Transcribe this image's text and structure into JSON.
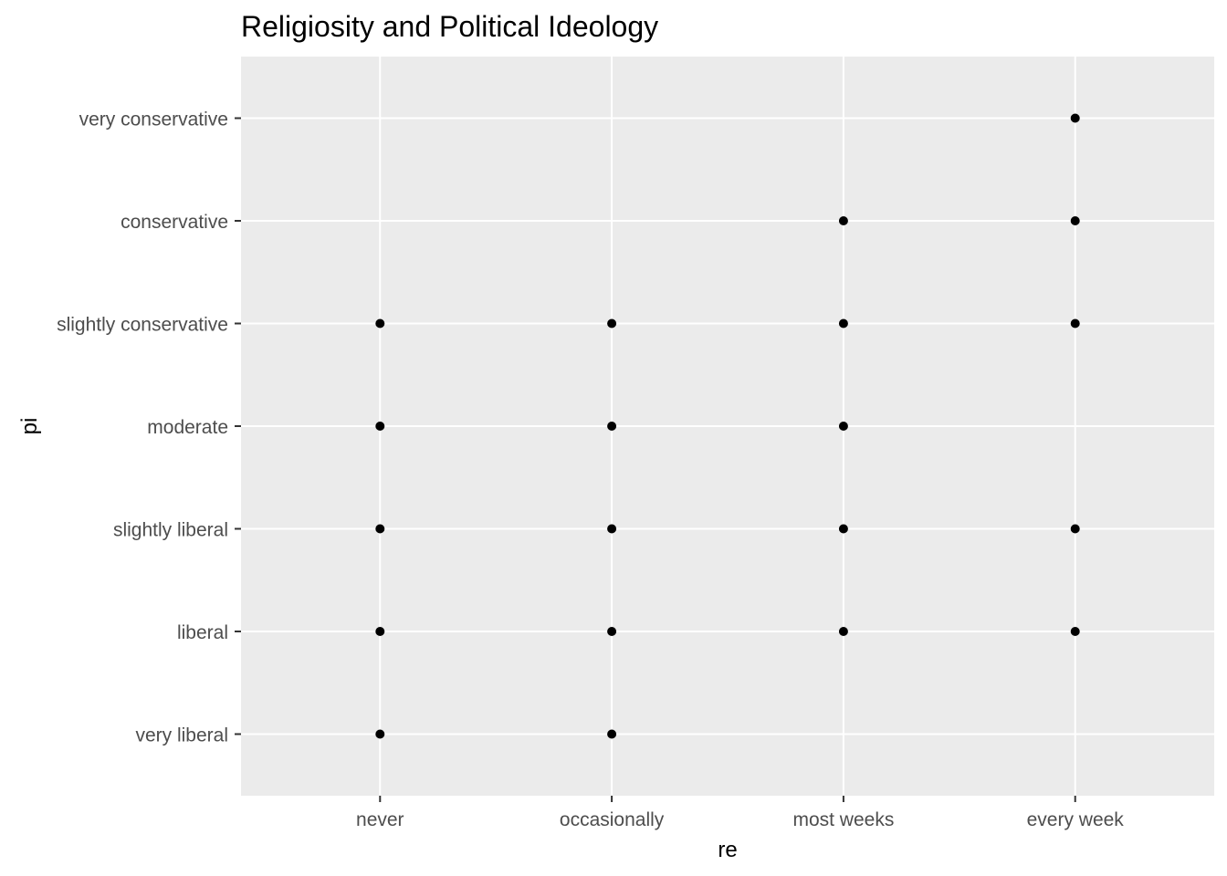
{
  "chart_data": {
    "type": "scatter",
    "title": "Religiosity and Political Ideology",
    "xlabel": "re",
    "ylabel": "pi",
    "x_categories": [
      "never",
      "occasionally",
      "most weeks",
      "every week"
    ],
    "y_categories": [
      "very liberal",
      "liberal",
      "slightly liberal",
      "moderate",
      "slightly conservative",
      "conservative",
      "very conservative"
    ],
    "points": [
      {
        "x": "never",
        "y": "very liberal"
      },
      {
        "x": "never",
        "y": "liberal"
      },
      {
        "x": "never",
        "y": "slightly liberal"
      },
      {
        "x": "never",
        "y": "moderate"
      },
      {
        "x": "never",
        "y": "slightly conservative"
      },
      {
        "x": "occasionally",
        "y": "very liberal"
      },
      {
        "x": "occasionally",
        "y": "liberal"
      },
      {
        "x": "occasionally",
        "y": "slightly liberal"
      },
      {
        "x": "occasionally",
        "y": "moderate"
      },
      {
        "x": "occasionally",
        "y": "slightly conservative"
      },
      {
        "x": "most weeks",
        "y": "liberal"
      },
      {
        "x": "most weeks",
        "y": "slightly liberal"
      },
      {
        "x": "most weeks",
        "y": "moderate"
      },
      {
        "x": "most weeks",
        "y": "slightly conservative"
      },
      {
        "x": "most weeks",
        "y": "conservative"
      },
      {
        "x": "every week",
        "y": "liberal"
      },
      {
        "x": "every week",
        "y": "slightly liberal"
      },
      {
        "x": "every week",
        "y": "slightly conservative"
      },
      {
        "x": "every week",
        "y": "conservative"
      },
      {
        "x": "every week",
        "y": "very conservative"
      }
    ],
    "grid": true,
    "legend": "none",
    "colors": {
      "panel": "#ebebeb",
      "grid": "#ffffff",
      "point": "#000000",
      "tick_label": "#4d4d4d"
    }
  }
}
